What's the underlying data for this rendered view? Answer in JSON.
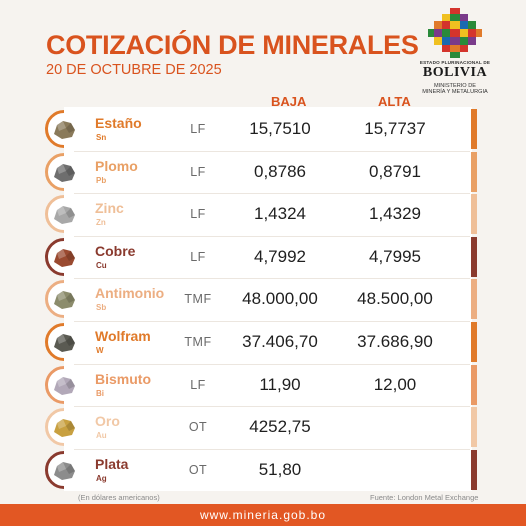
{
  "header": {
    "title": "COTIZACIÓN DE MINERALES",
    "date": "20 DE OCTUBRE DE 2025"
  },
  "logo": {
    "estado": "ESTADO PLURINACIONAL DE",
    "country": "BOLIVIA",
    "ministerio_line1": "MINISTERIO DE",
    "ministerio_line2": "MINERÍA Y METALURGIA"
  },
  "columns": {
    "low": "BAJA",
    "high": "ALTA"
  },
  "minerals": [
    {
      "name": "Estaño",
      "symbol": "Sn",
      "unit": "LF",
      "low": "15,7510",
      "high": "15,7737",
      "color": "#e07a2a",
      "rock": "#8a7a5a"
    },
    {
      "name": "Plomo",
      "symbol": "Pb",
      "unit": "LF",
      "low": "0,8786",
      "high": "0,8791",
      "color": "#e9a065",
      "rock": "#6e6e6e"
    },
    {
      "name": "Zinc",
      "symbol": "Zn",
      "unit": "LF",
      "low": "1,4324",
      "high": "1,4329",
      "color": "#efbf98",
      "rock": "#a8a8a8"
    },
    {
      "name": "Cobre",
      "symbol": "Cu",
      "unit": "LF",
      "low": "4,7992",
      "high": "4,7995",
      "color": "#8a3a2e",
      "rock": "#9a4a30"
    },
    {
      "name": "Antimonio",
      "symbol": "Sb",
      "unit": "TMF",
      "low": "48.000,00",
      "high": "48.500,00",
      "color": "#ecae82",
      "rock": "#8c8c6c"
    },
    {
      "name": "Wolfram",
      "symbol": "W",
      "unit": "TMF",
      "low": "37.406,70",
      "high": "37.686,90",
      "color": "#e07a2a",
      "rock": "#5a5a52"
    },
    {
      "name": "Bismuto",
      "symbol": "Bi",
      "unit": "LF",
      "low": "11,90",
      "high": "12,00",
      "color": "#ea9a66",
      "rock": "#b2a8b8"
    },
    {
      "name": "Oro",
      "symbol": "Au",
      "unit": "OT",
      "low": "4252,75",
      "high": "",
      "color": "#f1c8a6",
      "rock": "#c8a040"
    },
    {
      "name": "Plata",
      "symbol": "Ag",
      "unit": "OT",
      "low": "51,80",
      "high": "",
      "color": "#8a3a2e",
      "rock": "#8c8c8c"
    }
  ],
  "notes": {
    "currency": "(En dólares americanos)",
    "source": "Fuente: London Metal Exchange"
  },
  "footer": {
    "url": "www.mineria.gob.bo"
  }
}
